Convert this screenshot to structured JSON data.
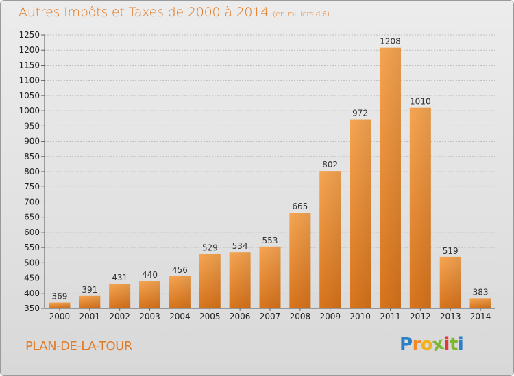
{
  "chart_data": {
    "type": "bar",
    "title": "Autres Impôts et Taxes de 2000 à 2014",
    "unit_note": "(en milliers d'€)",
    "categories": [
      "2000",
      "2001",
      "2002",
      "2003",
      "2004",
      "2005",
      "2006",
      "2007",
      "2008",
      "2009",
      "2010",
      "2011",
      "2012",
      "2013",
      "2014"
    ],
    "values": [
      369,
      391,
      431,
      440,
      456,
      529,
      534,
      553,
      665,
      802,
      972,
      1208,
      1010,
      519,
      383
    ],
    "ylim": [
      350,
      1250
    ],
    "yticks": [
      350,
      400,
      450,
      500,
      550,
      600,
      650,
      700,
      750,
      800,
      850,
      900,
      950,
      1000,
      1050,
      1100,
      1150,
      1200,
      1250
    ],
    "grid": true,
    "bar_color": "#f0923a",
    "xlabel": "",
    "ylabel": ""
  },
  "footer": {
    "commune": "PLAN-DE-LA-TOUR",
    "logo_letters": [
      "P",
      "r",
      "o",
      "x",
      "i",
      "t",
      "i"
    ],
    "logo_colors": [
      "#2d7fc4",
      "#f08a24",
      "#f0b020",
      "#7cb82f",
      "#e03a3a",
      "#7cb82f",
      "#2d7fc4"
    ]
  }
}
